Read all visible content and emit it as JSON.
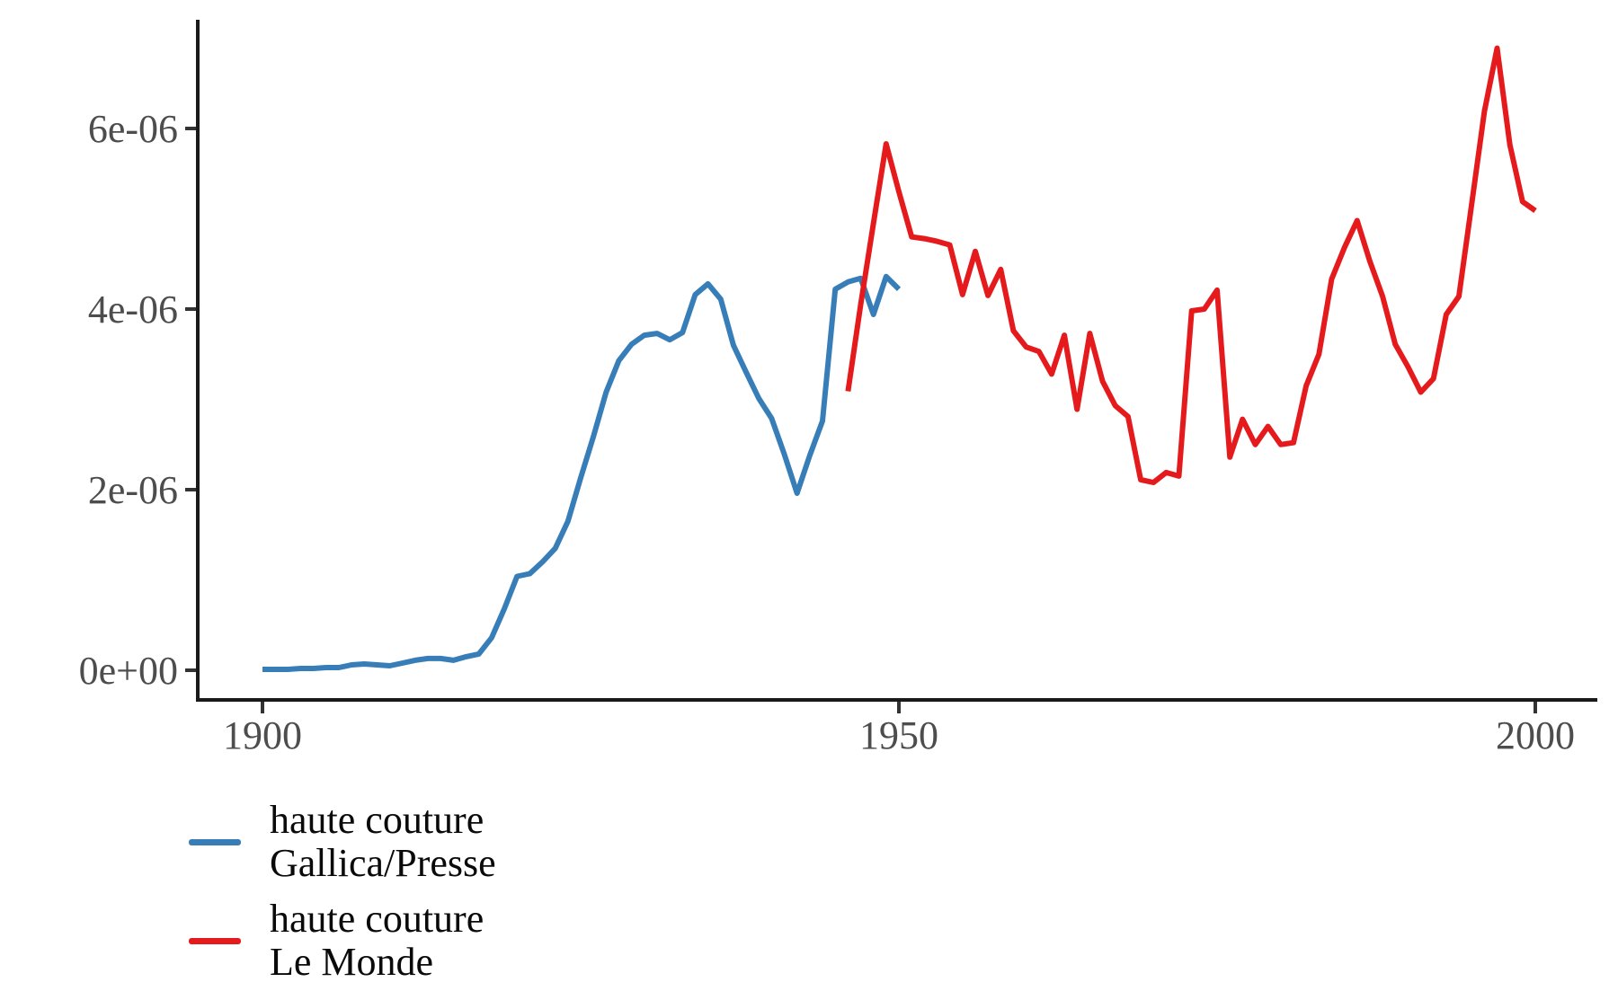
{
  "figure": {
    "background_color": "#ffffff",
    "axis_line_color": "#1a1a1a",
    "tick_mark_color": "#333333",
    "tick_label_color": "#4d4d4d",
    "legend_text_color": "#0a0a0a"
  },
  "chart_data": {
    "type": "line",
    "title": "",
    "xlabel": "",
    "ylabel": "",
    "grid": "off",
    "legend_position": "bottom-left",
    "x_axis": {
      "range": [
        1895,
        2005
      ],
      "ticks": [
        {
          "label": "1900",
          "value": 1900
        },
        {
          "label": "1950",
          "value": 1950
        },
        {
          "label": "2000",
          "value": 2000
        }
      ]
    },
    "y_axis": {
      "range": [
        -3.3e-07,
        7.2e-06
      ],
      "ticks": [
        {
          "label": "0e+00",
          "value": 0
        },
        {
          "label": "2e-06",
          "value": 2e-06
        },
        {
          "label": "4e-06",
          "value": 4e-06
        },
        {
          "label": "6e-06",
          "value": 6e-06
        }
      ]
    },
    "series": [
      {
        "name": "haute couture Gallica/Presse",
        "legend_lines": [
          "haute couture",
          "Gallica/Presse"
        ],
        "color": "#377EB8",
        "x": [
          1900,
          1901,
          1902,
          1903,
          1904,
          1905,
          1906,
          1907,
          1908,
          1909,
          1910,
          1911,
          1912,
          1913,
          1914,
          1915,
          1916,
          1917,
          1918,
          1919,
          1920,
          1921,
          1922,
          1923,
          1924,
          1925,
          1926,
          1927,
          1928,
          1929,
          1930,
          1931,
          1932,
          1933,
          1934,
          1935,
          1936,
          1937,
          1938,
          1939,
          1940,
          1941,
          1942,
          1943,
          1944,
          1945,
          1946,
          1947,
          1948,
          1949,
          1950
        ],
        "values": [
          1e-08,
          1e-08,
          1e-08,
          2e-08,
          2e-08,
          3e-08,
          3e-08,
          6e-08,
          7e-08,
          6e-08,
          5e-08,
          8e-08,
          1.1e-07,
          1.3e-07,
          1.3e-07,
          1.1e-07,
          1.5e-07,
          1.8e-07,
          3.6e-07,
          6.8e-07,
          1.04e-06,
          1.07e-06,
          1.2e-06,
          1.35e-06,
          1.65e-06,
          2.13e-06,
          2.59e-06,
          3.08e-06,
          3.43e-06,
          3.61e-06,
          3.71e-06,
          3.73e-06,
          3.66e-06,
          3.74e-06,
          4.16e-06,
          4.28e-06,
          4.11e-06,
          3.6e-06,
          3.3e-06,
          3.01e-06,
          2.79e-06,
          2.39e-06,
          1.96e-06,
          2.38e-06,
          2.76e-06,
          4.22e-06,
          4.3e-06,
          4.34e-06,
          3.94e-06,
          4.36e-06,
          4.22e-06
        ]
      },
      {
        "name": "haute couture Le Monde",
        "legend_lines": [
          "haute couture",
          "Le Monde"
        ],
        "color": "#E41A1C",
        "x": [
          1946,
          1947,
          1948,
          1949,
          1950,
          1951,
          1952,
          1953,
          1954,
          1955,
          1956,
          1957,
          1958,
          1959,
          1960,
          1961,
          1962,
          1963,
          1964,
          1965,
          1966,
          1967,
          1968,
          1969,
          1970,
          1971,
          1972,
          1973,
          1974,
          1975,
          1976,
          1977,
          1978,
          1979,
          1980,
          1981,
          1982,
          1983,
          1984,
          1985,
          1986,
          1987,
          1988,
          1989,
          1990,
          1991,
          1992,
          1993,
          1994,
          1995,
          1996,
          1997,
          1998,
          1999,
          2000
        ],
        "values": [
          3.09e-06,
          4.05e-06,
          4.95e-06,
          5.83e-06,
          5.3e-06,
          4.8e-06,
          4.78e-06,
          4.75e-06,
          4.71e-06,
          4.16e-06,
          4.64e-06,
          4.15e-06,
          4.44e-06,
          3.76e-06,
          3.58e-06,
          3.53e-06,
          3.28e-06,
          3.71e-06,
          2.89e-06,
          3.73e-06,
          3.2e-06,
          2.93e-06,
          2.81e-06,
          2.11e-06,
          2.08e-06,
          2.19e-06,
          2.15e-06,
          3.98e-06,
          4e-06,
          4.21e-06,
          2.36e-06,
          2.78e-06,
          2.5e-06,
          2.7e-06,
          2.5e-06,
          2.52e-06,
          3.15e-06,
          3.5e-06,
          4.33e-06,
          4.68e-06,
          4.98e-06,
          4.53e-06,
          4.14e-06,
          3.61e-06,
          3.36e-06,
          3.08e-06,
          3.23e-06,
          3.94e-06,
          4.14e-06,
          5.16e-06,
          6.19e-06,
          6.89e-06,
          5.82e-06,
          5.19e-06,
          5.09e-06
        ]
      }
    ]
  }
}
